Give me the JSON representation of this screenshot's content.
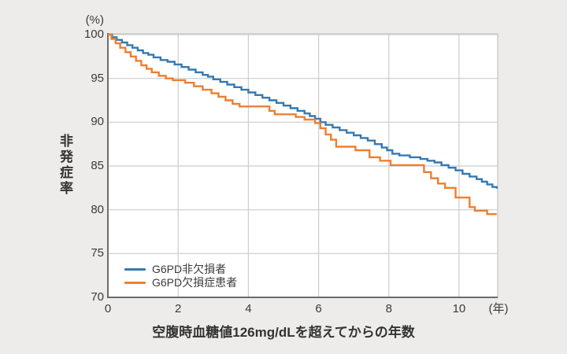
{
  "figure": {
    "y_unit_label": "(%)",
    "x_unit_label": "(年)",
    "y_axis_title": "非発症率",
    "x_axis_title": "空腹時血糖値126mg/dLを超えてからの年数"
  },
  "legend": {
    "items": [
      {
        "label": "G6PD非欠損者",
        "color": "#3579b1"
      },
      {
        "label": "G6PD欠損症患者",
        "color": "#ee7e30"
      }
    ]
  },
  "colors": {
    "background": "#edecea",
    "plot_background": "#ffffff",
    "grid": "#cccccc",
    "axis": "#5a5a5a",
    "text": "#3a3a3a",
    "series_blue": "#3579b1",
    "series_orange": "#ee7e30"
  },
  "chart_data": {
    "type": "line",
    "step": "after",
    "xlabel": "空腹時血糖値126mg/dLを超えてからの年数",
    "ylabel": "非発症率",
    "x_unit": "(年)",
    "y_unit": "(%)",
    "xlim": [
      0,
      11.1
    ],
    "ylim": [
      70,
      100
    ],
    "x_ticks": [
      0,
      2,
      4,
      6,
      8,
      10
    ],
    "y_ticks": [
      100,
      95,
      90,
      85,
      80,
      75,
      70
    ],
    "grid": true,
    "legend_position": "inside-bottom-left",
    "series": [
      {
        "name": "G6PD非欠損者",
        "color": "#3579b1",
        "points": [
          [
            0,
            100
          ],
          [
            0.12,
            99.7
          ],
          [
            0.25,
            99.4
          ],
          [
            0.4,
            99.1
          ],
          [
            0.55,
            98.8
          ],
          [
            0.7,
            98.5
          ],
          [
            0.85,
            98.2
          ],
          [
            1.0,
            97.9
          ],
          [
            1.15,
            97.7
          ],
          [
            1.3,
            97.4
          ],
          [
            1.5,
            97.1
          ],
          [
            1.7,
            96.9
          ],
          [
            1.9,
            96.6
          ],
          [
            2.1,
            96.3
          ],
          [
            2.3,
            96.0
          ],
          [
            2.5,
            95.7
          ],
          [
            2.7,
            95.4
          ],
          [
            2.85,
            95.2
          ],
          [
            3.0,
            94.9
          ],
          [
            3.2,
            94.6
          ],
          [
            3.4,
            94.3
          ],
          [
            3.6,
            94.0
          ],
          [
            3.8,
            93.7
          ],
          [
            4.0,
            93.4
          ],
          [
            4.2,
            93.1
          ],
          [
            4.4,
            92.8
          ],
          [
            4.6,
            92.5
          ],
          [
            4.8,
            92.2
          ],
          [
            5.0,
            91.9
          ],
          [
            5.2,
            91.6
          ],
          [
            5.4,
            91.3
          ],
          [
            5.6,
            91.0
          ],
          [
            5.75,
            90.7
          ],
          [
            5.9,
            90.4
          ],
          [
            6.05,
            90.0
          ],
          [
            6.2,
            89.7
          ],
          [
            6.4,
            89.4
          ],
          [
            6.6,
            89.1
          ],
          [
            6.8,
            88.8
          ],
          [
            7.0,
            88.5
          ],
          [
            7.2,
            88.2
          ],
          [
            7.4,
            87.9
          ],
          [
            7.6,
            87.5
          ],
          [
            7.8,
            87.1
          ],
          [
            7.95,
            86.8
          ],
          [
            8.1,
            86.4
          ],
          [
            8.3,
            86.2
          ],
          [
            8.6,
            86.0
          ],
          [
            8.9,
            85.8
          ],
          [
            9.1,
            85.6
          ],
          [
            9.3,
            85.4
          ],
          [
            9.5,
            85.1
          ],
          [
            9.7,
            84.8
          ],
          [
            9.9,
            84.5
          ],
          [
            10.1,
            84.1
          ],
          [
            10.3,
            83.8
          ],
          [
            10.5,
            83.5
          ],
          [
            10.65,
            83.2
          ],
          [
            10.8,
            82.9
          ],
          [
            10.95,
            82.6
          ],
          [
            11.07,
            82.4
          ]
        ]
      },
      {
        "name": "G6PD欠損症患者",
        "color": "#ee7e30",
        "points": [
          [
            0,
            100
          ],
          [
            0.1,
            99.5
          ],
          [
            0.22,
            99.0
          ],
          [
            0.35,
            98.5
          ],
          [
            0.5,
            98.0
          ],
          [
            0.65,
            97.5
          ],
          [
            0.8,
            97.0
          ],
          [
            0.95,
            96.5
          ],
          [
            1.1,
            96.1
          ],
          [
            1.25,
            95.7
          ],
          [
            1.45,
            95.3
          ],
          [
            1.65,
            95.0
          ],
          [
            1.85,
            94.8
          ],
          [
            2.2,
            94.5
          ],
          [
            2.45,
            94.1
          ],
          [
            2.7,
            93.7
          ],
          [
            2.95,
            93.3
          ],
          [
            3.15,
            92.9
          ],
          [
            3.35,
            92.5
          ],
          [
            3.55,
            92.1
          ],
          [
            3.75,
            91.8
          ],
          [
            4.6,
            91.3
          ],
          [
            4.75,
            90.9
          ],
          [
            5.35,
            90.6
          ],
          [
            5.6,
            90.3
          ],
          [
            5.9,
            89.9
          ],
          [
            6.05,
            89.3
          ],
          [
            6.2,
            88.6
          ],
          [
            6.35,
            88.0
          ],
          [
            6.5,
            87.2
          ],
          [
            7.05,
            86.8
          ],
          [
            7.45,
            86.0
          ],
          [
            7.75,
            85.6
          ],
          [
            8.05,
            85.1
          ],
          [
            9.0,
            84.3
          ],
          [
            9.2,
            83.6
          ],
          [
            9.4,
            83.0
          ],
          [
            9.6,
            82.5
          ],
          [
            9.9,
            81.4
          ],
          [
            10.3,
            80.3
          ],
          [
            10.45,
            79.9
          ],
          [
            10.8,
            79.5
          ],
          [
            11.07,
            79.5
          ]
        ]
      }
    ]
  }
}
